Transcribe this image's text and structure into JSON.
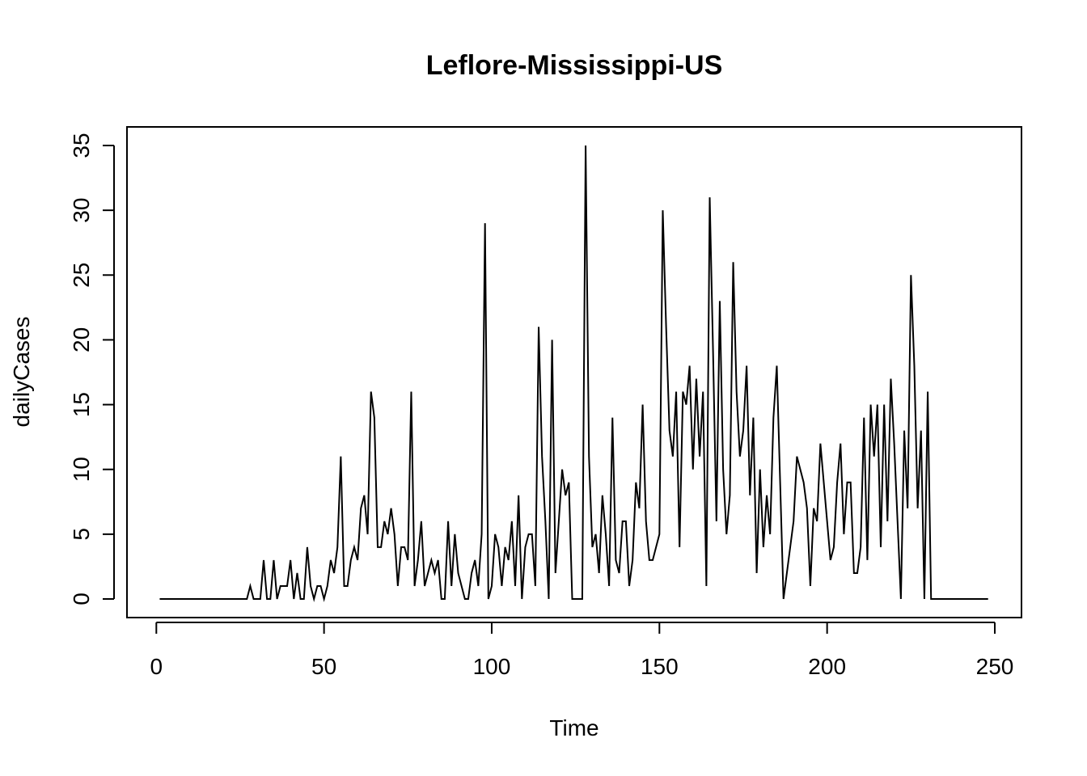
{
  "chart_data": {
    "type": "line",
    "title": "Leflore-Mississippi-US",
    "xlabel": "Time",
    "ylabel": "dailyCases",
    "xlim": [
      1,
      248
    ],
    "ylim": [
      0,
      35
    ],
    "x_ticks": [
      0,
      50,
      100,
      150,
      200,
      250
    ],
    "y_ticks": [
      0,
      5,
      10,
      15,
      20,
      25,
      30,
      35
    ],
    "grid": false,
    "legend": "none",
    "line_color": "#000000",
    "series": [
      {
        "x_start": 1,
        "values": [
          0,
          0,
          0,
          0,
          0,
          0,
          0,
          0,
          0,
          0,
          0,
          0,
          0,
          0,
          0,
          0,
          0,
          0,
          0,
          0,
          0,
          0,
          0,
          0,
          0,
          0,
          0,
          1,
          0,
          0,
          0,
          3,
          0,
          0,
          3,
          0,
          1,
          1,
          1,
          3,
          0,
          2,
          0,
          0,
          4,
          1,
          0,
          1,
          1,
          0,
          1,
          3,
          2,
          4,
          11,
          1,
          1,
          3,
          4,
          3,
          7,
          8,
          5,
          16,
          14,
          4,
          4,
          6,
          5,
          7,
          5,
          1,
          4,
          4,
          3,
          16,
          1,
          3,
          6,
          1,
          2,
          3,
          2,
          3,
          0,
          0,
          6,
          1,
          5,
          2,
          1,
          0,
          0,
          2,
          3,
          1,
          5,
          29,
          0,
          1,
          5,
          4,
          1,
          4,
          3,
          6,
          1,
          8,
          0,
          4,
          5,
          5,
          1,
          21,
          11,
          6,
          0,
          20,
          2,
          6,
          10,
          8,
          9,
          0,
          0,
          0,
          0,
          35,
          11,
          4,
          5,
          2,
          8,
          5,
          1,
          14,
          3,
          2,
          6,
          6,
          1,
          3,
          9,
          7,
          15,
          6,
          3,
          3,
          4,
          5,
          30,
          21,
          13,
          11,
          16,
          4,
          16,
          15,
          18,
          10,
          17,
          11,
          16,
          1,
          31,
          19,
          6,
          23,
          10,
          5,
          8,
          26,
          16,
          11,
          13,
          18,
          8,
          14,
          2,
          10,
          4,
          8,
          5,
          14,
          18,
          9,
          0,
          2,
          4,
          6,
          11,
          10,
          9,
          7,
          1,
          7,
          6,
          12,
          9,
          6,
          3,
          4,
          9,
          12,
          5,
          9,
          9,
          2,
          2,
          4,
          14,
          3,
          15,
          11,
          15,
          4,
          15,
          6,
          17,
          12,
          6,
          0,
          13,
          7,
          25,
          18,
          7,
          13,
          0,
          16,
          0,
          0,
          0,
          0,
          0,
          0,
          0,
          0,
          0,
          0,
          0,
          0,
          0,
          0,
          0,
          0,
          0,
          0
        ]
      }
    ]
  }
}
